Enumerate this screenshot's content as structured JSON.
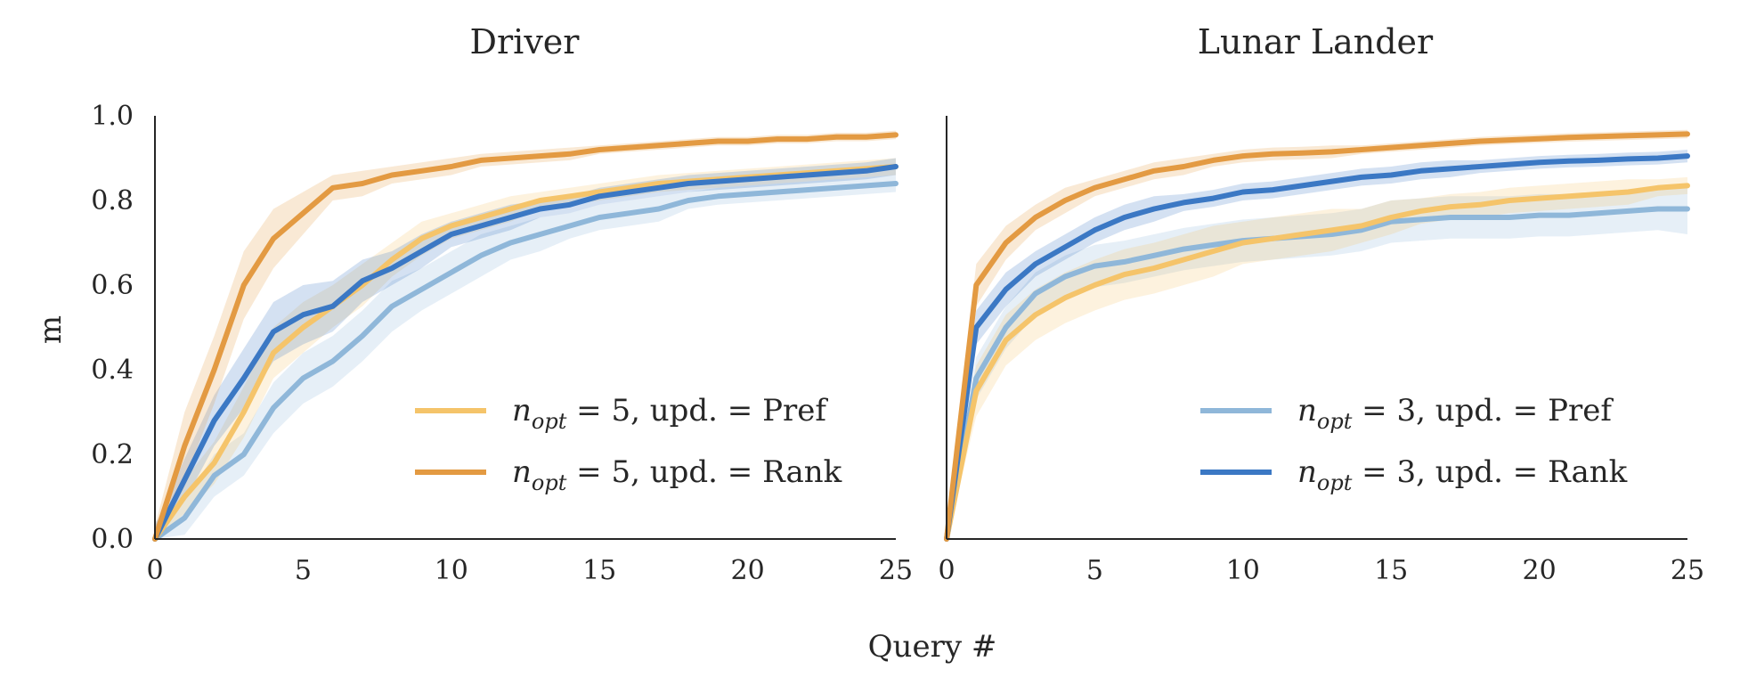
{
  "figure": {
    "xlabel": "Query #",
    "ylabel": "m"
  },
  "legend": {
    "left": [
      {
        "pre": "n",
        "sub": "opt",
        "post": " = 5, upd. = Pref",
        "color": "#f5c46a"
      },
      {
        "pre": "n",
        "sub": "opt",
        "post": " = 5, upd. = Rank",
        "color": "#e39a42"
      }
    ],
    "right": [
      {
        "pre": "n",
        "sub": "opt",
        "post": " = 3, upd. = Pref",
        "color": "#8fb7d9"
      },
      {
        "pre": "n",
        "sub": "opt",
        "post": " = 3, upd. = Rank",
        "color": "#3b78c4"
      }
    ]
  },
  "chart_data": [
    {
      "type": "line",
      "title": "Driver",
      "xlabel": "Query #",
      "ylabel": "m",
      "xlim": [
        0,
        25
      ],
      "ylim": [
        0,
        1.0
      ],
      "xticks": [
        "0",
        "5",
        "10",
        "15",
        "20",
        "25"
      ],
      "yticks": [
        "0.0",
        "0.2",
        "0.4",
        "0.6",
        "0.8",
        "1.0"
      ],
      "x": [
        0,
        1,
        2,
        3,
        4,
        5,
        6,
        7,
        8,
        9,
        10,
        11,
        12,
        13,
        14,
        15,
        16,
        17,
        18,
        19,
        20,
        21,
        22,
        23,
        24,
        25
      ],
      "series": [
        {
          "name": "n_opt = 3, upd. = Pref",
          "color": "#8fb7d9",
          "values": [
            0,
            0.05,
            0.15,
            0.2,
            0.31,
            0.38,
            0.42,
            0.48,
            0.55,
            0.59,
            0.63,
            0.67,
            0.7,
            0.72,
            0.74,
            0.76,
            0.77,
            0.78,
            0.8,
            0.81,
            0.815,
            0.82,
            0.825,
            0.83,
            0.835,
            0.84
          ],
          "band": [
            0.04,
            0.04,
            0.05,
            0.05,
            0.06,
            0.06,
            0.06,
            0.06,
            0.06,
            0.05,
            0.05,
            0.05,
            0.04,
            0.04,
            0.03,
            0.03,
            0.03,
            0.03,
            0.02,
            0.02,
            0.02,
            0.02,
            0.02,
            0.02,
            0.02,
            0.02
          ]
        },
        {
          "name": "n_opt = 5, upd. = Pref",
          "color": "#f5c46a",
          "values": [
            0,
            0.1,
            0.18,
            0.3,
            0.44,
            0.5,
            0.55,
            0.6,
            0.66,
            0.71,
            0.74,
            0.76,
            0.78,
            0.8,
            0.81,
            0.82,
            0.83,
            0.84,
            0.845,
            0.85,
            0.855,
            0.86,
            0.865,
            0.87,
            0.875,
            0.88
          ],
          "band": [
            0.03,
            0.04,
            0.05,
            0.06,
            0.06,
            0.06,
            0.05,
            0.05,
            0.04,
            0.04,
            0.03,
            0.03,
            0.03,
            0.02,
            0.02,
            0.02,
            0.02,
            0.02,
            0.02,
            0.02,
            0.02,
            0.02,
            0.02,
            0.02,
            0.02,
            0.02
          ]
        },
        {
          "name": "n_opt = 3, upd. = Rank",
          "color": "#3b78c4",
          "values": [
            0,
            0.14,
            0.28,
            0.38,
            0.49,
            0.53,
            0.55,
            0.61,
            0.64,
            0.68,
            0.72,
            0.74,
            0.76,
            0.78,
            0.79,
            0.81,
            0.82,
            0.83,
            0.84,
            0.845,
            0.85,
            0.855,
            0.86,
            0.865,
            0.87,
            0.88
          ],
          "band": [
            0.03,
            0.05,
            0.06,
            0.07,
            0.07,
            0.07,
            0.06,
            0.05,
            0.04,
            0.04,
            0.03,
            0.03,
            0.03,
            0.02,
            0.02,
            0.02,
            0.02,
            0.02,
            0.02,
            0.02,
            0.02,
            0.02,
            0.02,
            0.02,
            0.02,
            0.02
          ]
        },
        {
          "name": "n_opt = 5, upd. = Rank",
          "color": "#e39a42",
          "values": [
            0,
            0.22,
            0.4,
            0.6,
            0.71,
            0.77,
            0.83,
            0.84,
            0.86,
            0.87,
            0.88,
            0.895,
            0.9,
            0.905,
            0.91,
            0.92,
            0.925,
            0.93,
            0.935,
            0.94,
            0.94,
            0.945,
            0.945,
            0.95,
            0.95,
            0.955
          ],
          "band": [
            0.03,
            0.08,
            0.08,
            0.08,
            0.07,
            0.05,
            0.03,
            0.03,
            0.02,
            0.02,
            0.02,
            0.015,
            0.015,
            0.015,
            0.015,
            0.01,
            0.01,
            0.01,
            0.01,
            0.01,
            0.01,
            0.01,
            0.01,
            0.01,
            0.01,
            0.01
          ]
        }
      ]
    },
    {
      "type": "line",
      "title": "Lunar Lander",
      "xlabel": "Query #",
      "ylabel": "",
      "xlim": [
        0,
        25
      ],
      "ylim": [
        0,
        1.0
      ],
      "xticks": [
        "0",
        "5",
        "10",
        "15",
        "20",
        "25"
      ],
      "yticks": [],
      "x": [
        0,
        1,
        2,
        3,
        4,
        5,
        6,
        7,
        8,
        9,
        10,
        11,
        12,
        13,
        14,
        15,
        16,
        17,
        18,
        19,
        20,
        21,
        22,
        23,
        24,
        25
      ],
      "series": [
        {
          "name": "n_opt = 3, upd. = Pref",
          "color": "#8fb7d9",
          "values": [
            0,
            0.38,
            0.5,
            0.58,
            0.62,
            0.645,
            0.655,
            0.67,
            0.685,
            0.695,
            0.705,
            0.71,
            0.715,
            0.72,
            0.73,
            0.75,
            0.755,
            0.76,
            0.76,
            0.76,
            0.765,
            0.765,
            0.77,
            0.775,
            0.78,
            0.78
          ],
          "band": [
            0.03,
            0.05,
            0.05,
            0.05,
            0.05,
            0.05,
            0.05,
            0.05,
            0.05,
            0.05,
            0.05,
            0.05,
            0.05,
            0.05,
            0.05,
            0.05,
            0.05,
            0.05,
            0.05,
            0.05,
            0.05,
            0.05,
            0.05,
            0.05,
            0.05,
            0.06
          ]
        },
        {
          "name": "n_opt = 5, upd. = Pref",
          "color": "#f5c46a",
          "values": [
            0,
            0.35,
            0.47,
            0.53,
            0.57,
            0.6,
            0.625,
            0.64,
            0.66,
            0.68,
            0.7,
            0.71,
            0.72,
            0.73,
            0.74,
            0.76,
            0.775,
            0.785,
            0.79,
            0.8,
            0.805,
            0.81,
            0.815,
            0.82,
            0.83,
            0.835
          ],
          "band": [
            0.03,
            0.06,
            0.06,
            0.06,
            0.06,
            0.06,
            0.06,
            0.06,
            0.06,
            0.06,
            0.05,
            0.05,
            0.05,
            0.05,
            0.04,
            0.04,
            0.03,
            0.03,
            0.03,
            0.03,
            0.03,
            0.03,
            0.03,
            0.03,
            0.02,
            0.02
          ]
        },
        {
          "name": "n_opt = 3, upd. = Rank",
          "color": "#3b78c4",
          "values": [
            0,
            0.5,
            0.59,
            0.65,
            0.69,
            0.73,
            0.76,
            0.78,
            0.795,
            0.805,
            0.82,
            0.825,
            0.835,
            0.845,
            0.855,
            0.86,
            0.87,
            0.875,
            0.88,
            0.885,
            0.89,
            0.893,
            0.895,
            0.898,
            0.9,
            0.905
          ],
          "band": [
            0.03,
            0.04,
            0.04,
            0.03,
            0.03,
            0.03,
            0.03,
            0.03,
            0.02,
            0.02,
            0.02,
            0.02,
            0.02,
            0.02,
            0.02,
            0.02,
            0.02,
            0.02,
            0.015,
            0.015,
            0.015,
            0.015,
            0.015,
            0.015,
            0.015,
            0.015
          ]
        },
        {
          "name": "n_opt = 5, upd. = Rank",
          "color": "#e39a42",
          "values": [
            0,
            0.6,
            0.7,
            0.76,
            0.8,
            0.83,
            0.85,
            0.87,
            0.88,
            0.895,
            0.905,
            0.91,
            0.912,
            0.915,
            0.92,
            0.925,
            0.93,
            0.935,
            0.94,
            0.943,
            0.946,
            0.949,
            0.951,
            0.953,
            0.955,
            0.957
          ],
          "band": [
            0.03,
            0.05,
            0.04,
            0.03,
            0.03,
            0.02,
            0.02,
            0.02,
            0.02,
            0.015,
            0.015,
            0.015,
            0.015,
            0.015,
            0.01,
            0.01,
            0.01,
            0.01,
            0.01,
            0.01,
            0.01,
            0.01,
            0.01,
            0.01,
            0.01,
            0.01
          ]
        }
      ]
    }
  ]
}
